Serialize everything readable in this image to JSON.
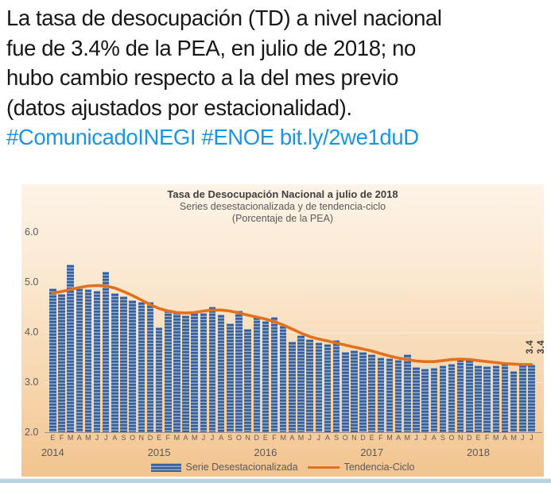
{
  "tweet": {
    "lines": [
      "La tasa de desocupación (TD) a nivel nacional",
      "fue de 3.4% de la PEA, en julio de 2018; no",
      "hubo cambio respecto a la del mes previo",
      "(datos ajustados por estacionalidad)."
    ],
    "hashtags": [
      "#ComunicadoINEGI",
      "#ENOE"
    ],
    "link": "bit.ly/2we1duD",
    "text_color": "#171717",
    "link_color": "#1b95e0"
  },
  "chart": {
    "title": "Tasa de Desocupación Nacional a julio de 2018",
    "subtitle": "Series desestacionalizada y de tendencia-ciclo",
    "unit_note": "(Porcentaje de la PEA)",
    "last_labels": [
      "3.4",
      "3.4"
    ],
    "colors": {
      "bar_dark": "#3a5f97",
      "bar_light": "#93afd2",
      "trend": "#e2711f",
      "bg_top": "#fdf3e7",
      "bg_bottom": "#f2c48f"
    }
  },
  "chart_data": {
    "type": "bar",
    "title": "Tasa de Desocupación Nacional a julio de 2018",
    "subtitle": "Series desestacionalizada y de tendencia-ciclo",
    "ylabel": "Porcentaje de la PEA",
    "ylim": [
      2.0,
      6.0
    ],
    "yticks": [
      "6.0",
      "5.0",
      "4.0",
      "3.0",
      "2.0"
    ],
    "grid": true,
    "legend_position": "bottom",
    "months": [
      "E",
      "F",
      "M",
      "A",
      "M",
      "J",
      "J",
      "A",
      "S",
      "O",
      "N",
      "D",
      "E",
      "F",
      "M",
      "A",
      "M",
      "J",
      "J",
      "A",
      "S",
      "O",
      "N",
      "D",
      "E",
      "F",
      "M",
      "A",
      "M",
      "J",
      "J",
      "A",
      "S",
      "O",
      "N",
      "D",
      "E",
      "F",
      "M",
      "A",
      "M",
      "J",
      "J",
      "A",
      "S",
      "O",
      "N",
      "D",
      "E",
      "F",
      "M",
      "A",
      "M",
      "J",
      "J"
    ],
    "years": [
      {
        "label": "2014",
        "start": 0
      },
      {
        "label": "2015",
        "start": 12
      },
      {
        "label": "2016",
        "start": 24
      },
      {
        "label": "2017",
        "start": 36
      },
      {
        "label": "2018",
        "start": 48
      }
    ],
    "series": [
      {
        "name": "Serie Desestacionalizada",
        "type": "bar",
        "values": [
          4.88,
          4.76,
          5.35,
          4.87,
          4.86,
          4.83,
          5.2,
          4.78,
          4.72,
          4.63,
          4.6,
          4.6,
          4.1,
          4.45,
          4.42,
          4.33,
          4.38,
          4.38,
          4.51,
          4.35,
          4.18,
          4.43,
          4.06,
          4.3,
          4.23,
          4.3,
          4.13,
          3.81,
          3.94,
          3.85,
          3.8,
          3.76,
          3.84,
          3.6,
          3.63,
          3.61,
          3.55,
          3.5,
          3.48,
          3.45,
          3.55,
          3.3,
          3.27,
          3.28,
          3.33,
          3.36,
          3.46,
          3.44,
          3.34,
          3.32,
          3.34,
          3.38,
          3.22,
          3.35,
          3.35
        ]
      },
      {
        "name": "Tendencia-Ciclo",
        "type": "line",
        "values": [
          4.78,
          4.81,
          4.85,
          4.89,
          4.92,
          4.93,
          4.92,
          4.88,
          4.81,
          4.73,
          4.64,
          4.55,
          4.47,
          4.42,
          4.39,
          4.38,
          4.39,
          4.42,
          4.44,
          4.44,
          4.42,
          4.38,
          4.34,
          4.3,
          4.26,
          4.21,
          4.14,
          4.06,
          3.98,
          3.91,
          3.86,
          3.82,
          3.78,
          3.74,
          3.7,
          3.66,
          3.62,
          3.57,
          3.52,
          3.48,
          3.45,
          3.42,
          3.41,
          3.41,
          3.43,
          3.45,
          3.46,
          3.45,
          3.43,
          3.41,
          3.39,
          3.37,
          3.36,
          3.35,
          3.35
        ]
      }
    ],
    "annotations": [
      "3.4",
      "3.4"
    ]
  }
}
